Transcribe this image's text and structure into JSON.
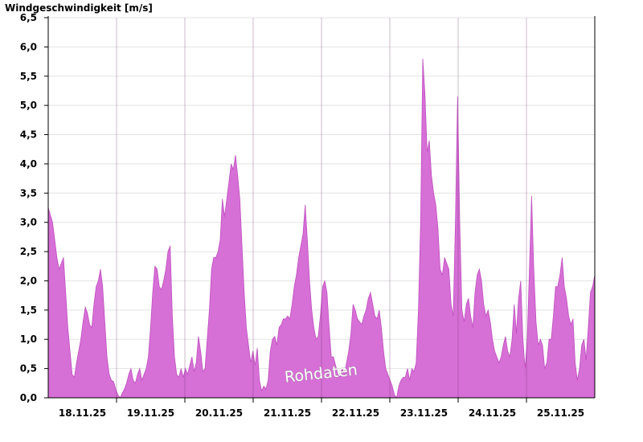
{
  "chart_data": {
    "type": "area",
    "ylabel": "Windgeschwindigkeit [m/s]",
    "ylim": [
      0,
      6.5
    ],
    "y_ticks": [
      "0,0",
      "0,5",
      "1,0",
      "1,5",
      "2,0",
      "2,5",
      "3,0",
      "3,5",
      "4,0",
      "4,5",
      "5,0",
      "5,5",
      "6,0",
      "6,5"
    ],
    "x_ticks": [
      "18.11.25",
      "19.11.25",
      "20.11.25",
      "21.11.25",
      "22.11.25",
      "23.11.25",
      "24.11.25",
      "25.11.25"
    ],
    "grid": true,
    "annotation": "Rohdaten",
    "colors": {
      "fill": "#d66fd6",
      "stroke": "#c050c0",
      "grid": "#e3e3e3",
      "axis": "#000000"
    },
    "series": [
      {
        "values": [
          [
            0,
            3.25
          ],
          [
            2,
            3.0
          ],
          [
            3,
            2.7
          ],
          [
            4,
            2.4
          ],
          [
            5,
            2.2
          ],
          [
            6,
            2.3
          ],
          [
            7,
            2.4
          ],
          [
            8,
            1.8
          ],
          [
            9,
            1.2
          ],
          [
            10,
            0.8
          ],
          [
            11,
            0.4
          ],
          [
            12,
            0.35
          ],
          [
            13,
            0.6
          ],
          [
            14,
            0.8
          ],
          [
            15,
            1.0
          ],
          [
            16,
            1.3
          ],
          [
            17,
            1.55
          ],
          [
            18,
            1.45
          ],
          [
            19,
            1.25
          ],
          [
            20,
            1.2
          ],
          [
            21,
            1.6
          ],
          [
            22,
            1.9
          ],
          [
            23,
            2.0
          ],
          [
            24,
            2.2
          ],
          [
            25,
            1.9
          ],
          [
            26,
            1.3
          ],
          [
            27,
            0.7
          ],
          [
            28,
            0.4
          ],
          [
            29,
            0.3
          ],
          [
            30,
            0.28
          ],
          [
            31,
            0.15
          ],
          [
            32,
            0.05
          ],
          [
            33,
            0.0
          ],
          [
            34,
            0.08
          ],
          [
            35,
            0.15
          ],
          [
            36,
            0.25
          ],
          [
            37,
            0.4
          ],
          [
            38,
            0.5
          ],
          [
            39,
            0.3
          ],
          [
            40,
            0.25
          ],
          [
            41,
            0.4
          ],
          [
            42,
            0.5
          ],
          [
            43,
            0.3
          ],
          [
            44,
            0.4
          ],
          [
            45,
            0.5
          ],
          [
            46,
            0.7
          ],
          [
            47,
            1.2
          ],
          [
            48,
            1.8
          ],
          [
            49,
            2.25
          ],
          [
            50,
            2.2
          ],
          [
            51,
            1.9
          ],
          [
            52,
            1.85
          ],
          [
            53,
            2.0
          ],
          [
            54,
            2.2
          ],
          [
            55,
            2.5
          ],
          [
            56,
            2.6
          ],
          [
            57,
            1.4
          ],
          [
            58,
            0.7
          ],
          [
            59,
            0.4
          ],
          [
            60,
            0.35
          ],
          [
            61,
            0.5
          ],
          [
            62,
            0.35
          ],
          [
            63,
            0.5
          ],
          [
            64,
            0.4
          ],
          [
            65,
            0.55
          ],
          [
            66,
            0.7
          ],
          [
            67,
            0.45
          ],
          [
            68,
            0.6
          ],
          [
            69,
            1.05
          ],
          [
            70,
            0.8
          ],
          [
            71,
            0.45
          ],
          [
            72,
            0.5
          ],
          [
            73,
            1.0
          ],
          [
            74,
            1.5
          ],
          [
            75,
            2.2
          ],
          [
            76,
            2.4
          ],
          [
            77,
            2.4
          ],
          [
            78,
            2.5
          ],
          [
            79,
            2.7
          ],
          [
            80,
            3.4
          ],
          [
            81,
            3.1
          ],
          [
            82,
            3.4
          ],
          [
            83,
            3.7
          ],
          [
            84,
            4.0
          ],
          [
            85,
            3.9
          ],
          [
            86,
            4.15
          ],
          [
            87,
            3.8
          ],
          [
            88,
            3.4
          ],
          [
            89,
            2.6
          ],
          [
            90,
            1.8
          ],
          [
            91,
            1.2
          ],
          [
            92,
            0.9
          ],
          [
            93,
            0.6
          ],
          [
            94,
            0.8
          ],
          [
            95,
            0.55
          ],
          [
            96,
            0.85
          ],
          [
            97,
            0.3
          ],
          [
            98,
            0.12
          ],
          [
            99,
            0.2
          ],
          [
            100,
            0.15
          ],
          [
            101,
            0.3
          ],
          [
            102,
            0.8
          ],
          [
            103,
            1.0
          ],
          [
            104,
            1.05
          ],
          [
            105,
            0.9
          ],
          [
            106,
            1.2
          ],
          [
            107,
            1.25
          ],
          [
            108,
            1.35
          ],
          [
            109,
            1.35
          ],
          [
            110,
            1.4
          ],
          [
            111,
            1.35
          ],
          [
            112,
            1.6
          ],
          [
            113,
            1.9
          ],
          [
            114,
            2.1
          ],
          [
            115,
            2.4
          ],
          [
            116,
            2.6
          ],
          [
            117,
            2.8
          ],
          [
            118,
            3.3
          ],
          [
            119,
            2.7
          ],
          [
            120,
            2.0
          ],
          [
            121,
            1.5
          ],
          [
            122,
            1.2
          ],
          [
            123,
            1.0
          ],
          [
            124,
            1.05
          ],
          [
            125,
            1.4
          ],
          [
            126,
            1.9
          ],
          [
            127,
            2.0
          ],
          [
            128,
            1.8
          ],
          [
            129,
            1.2
          ],
          [
            130,
            0.7
          ],
          [
            131,
            0.7
          ],
          [
            132,
            0.55
          ],
          [
            133,
            0.4
          ],
          [
            134,
            0.35
          ],
          [
            135,
            0.5
          ],
          [
            136,
            0.4
          ],
          [
            137,
            0.6
          ],
          [
            138,
            0.8
          ],
          [
            139,
            1.1
          ],
          [
            140,
            1.6
          ],
          [
            141,
            1.5
          ],
          [
            142,
            1.35
          ],
          [
            143,
            1.3
          ],
          [
            144,
            1.25
          ],
          [
            145,
            1.4
          ],
          [
            146,
            1.5
          ],
          [
            147,
            1.7
          ],
          [
            148,
            1.8
          ],
          [
            149,
            1.6
          ],
          [
            150,
            1.4
          ],
          [
            151,
            1.35
          ],
          [
            152,
            1.5
          ],
          [
            153,
            1.2
          ],
          [
            154,
            0.8
          ],
          [
            155,
            0.5
          ],
          [
            156,
            0.4
          ],
          [
            157,
            0.3
          ],
          [
            158,
            0.2
          ],
          [
            159,
            0.05
          ],
          [
            160,
            0.0
          ],
          [
            161,
            0.2
          ],
          [
            162,
            0.3
          ],
          [
            163,
            0.35
          ],
          [
            164,
            0.35
          ],
          [
            165,
            0.5
          ],
          [
            166,
            0.3
          ],
          [
            167,
            0.5
          ],
          [
            168,
            0.45
          ],
          [
            169,
            0.6
          ],
          [
            170,
            1.5
          ],
          [
            171,
            3.0
          ],
          [
            172,
            5.8
          ],
          [
            173,
            5.2
          ],
          [
            174,
            4.2
          ],
          [
            175,
            4.4
          ],
          [
            176,
            3.8
          ],
          [
            177,
            3.5
          ],
          [
            178,
            3.3
          ],
          [
            179,
            2.9
          ],
          [
            180,
            2.2
          ],
          [
            181,
            2.1
          ],
          [
            182,
            2.4
          ],
          [
            183,
            2.3
          ],
          [
            184,
            2.2
          ],
          [
            185,
            1.6
          ],
          [
            186,
            1.4
          ],
          [
            187,
            3.0
          ],
          [
            188,
            5.15
          ],
          [
            189,
            3.0
          ],
          [
            190,
            1.5
          ],
          [
            191,
            1.3
          ],
          [
            192,
            1.6
          ],
          [
            193,
            1.7
          ],
          [
            194,
            1.4
          ],
          [
            195,
            1.2
          ],
          [
            196,
            1.8
          ],
          [
            197,
            2.1
          ],
          [
            198,
            2.2
          ],
          [
            199,
            2.0
          ],
          [
            200,
            1.6
          ],
          [
            201,
            1.4
          ],
          [
            202,
            1.5
          ],
          [
            203,
            1.3
          ],
          [
            204,
            1.0
          ],
          [
            205,
            0.8
          ],
          [
            206,
            0.7
          ],
          [
            207,
            0.6
          ],
          [
            208,
            0.7
          ],
          [
            209,
            0.9
          ],
          [
            210,
            1.05
          ],
          [
            211,
            0.8
          ],
          [
            212,
            0.7
          ],
          [
            213,
            1.0
          ],
          [
            214,
            1.6
          ],
          [
            215,
            1.1
          ],
          [
            216,
            1.7
          ],
          [
            217,
            2.0
          ],
          [
            218,
            1.0
          ],
          [
            219,
            0.5
          ],
          [
            220,
            1.0
          ],
          [
            221,
            2.2
          ],
          [
            222,
            3.45
          ],
          [
            223,
            2.2
          ],
          [
            224,
            1.3
          ],
          [
            225,
            0.9
          ],
          [
            226,
            1.0
          ],
          [
            227,
            0.9
          ],
          [
            228,
            0.5
          ],
          [
            229,
            0.6
          ],
          [
            230,
            1.0
          ],
          [
            231,
            1.0
          ],
          [
            232,
            1.4
          ],
          [
            233,
            1.9
          ],
          [
            234,
            1.9
          ],
          [
            235,
            2.1
          ],
          [
            236,
            2.4
          ],
          [
            237,
            1.9
          ],
          [
            238,
            1.7
          ],
          [
            239,
            1.4
          ],
          [
            240,
            1.25
          ],
          [
            241,
            1.35
          ],
          [
            242,
            0.6
          ],
          [
            243,
            0.3
          ],
          [
            244,
            0.5
          ],
          [
            245,
            0.9
          ],
          [
            246,
            1.0
          ],
          [
            247,
            0.65
          ],
          [
            248,
            1.2
          ],
          [
            249,
            1.8
          ],
          [
            250,
            1.9
          ],
          [
            251,
            2.1
          ]
        ]
      }
    ]
  }
}
